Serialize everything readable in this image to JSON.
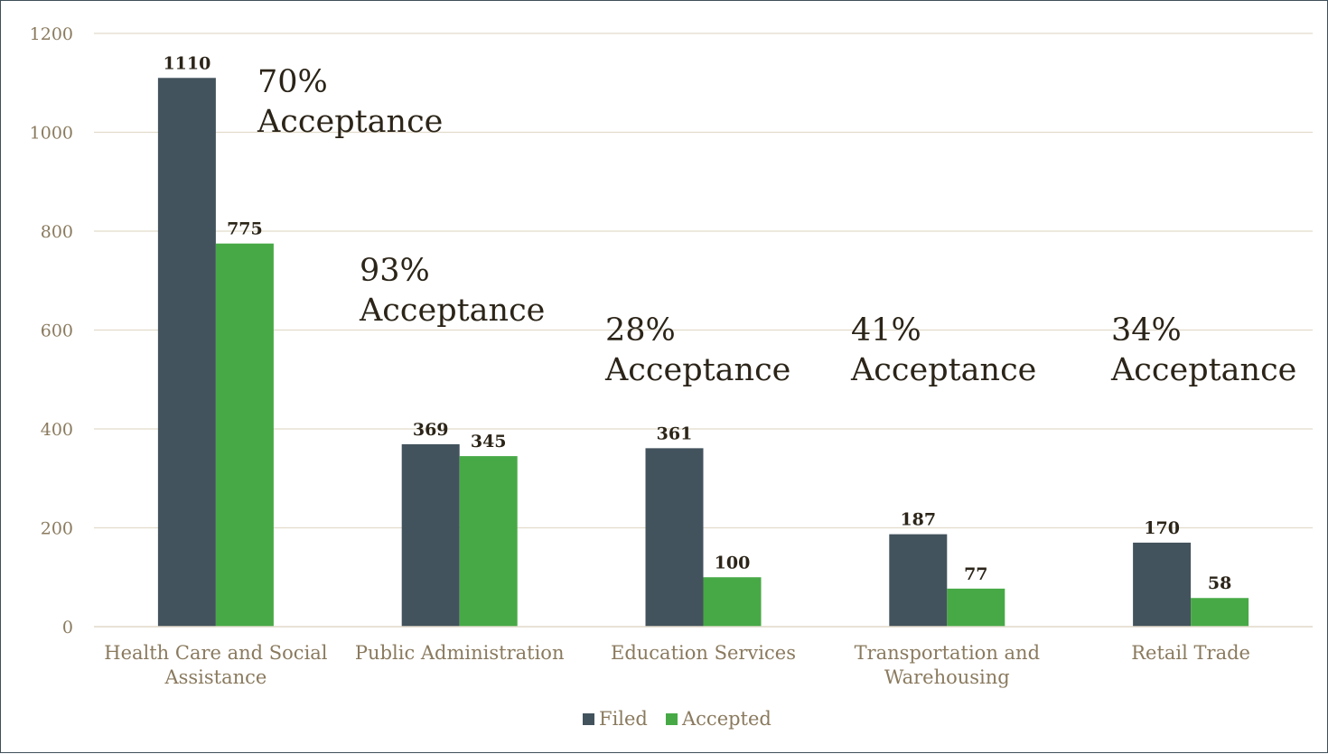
{
  "chart_data": {
    "type": "bar",
    "categories": [
      [
        "Health Care and Social",
        "Assistance"
      ],
      [
        "Public Administration"
      ],
      [
        "Education Services"
      ],
      [
        "Transportation and",
        "Warehousing"
      ],
      [
        "Retail Trade"
      ]
    ],
    "series": [
      {
        "name": "Filed",
        "values": [
          1110,
          369,
          361,
          187,
          170
        ],
        "color": "#43535d"
      },
      {
        "name": "Accepted",
        "values": [
          775,
          345,
          100,
          77,
          58
        ],
        "color": "#47a946"
      }
    ],
    "ylim": [
      0,
      1200
    ],
    "yticks": [
      "0",
      "200",
      "400",
      "600",
      "800",
      "1000",
      "1200"
    ],
    "grid": true,
    "legend_position": "bottom",
    "annotations": [
      [
        "70%",
        "Acceptance"
      ],
      [
        "93%",
        "Acceptance"
      ],
      [
        "28%",
        "Acceptance"
      ],
      [
        "41%",
        "Acceptance"
      ],
      [
        "34%",
        "Acceptance"
      ]
    ]
  }
}
